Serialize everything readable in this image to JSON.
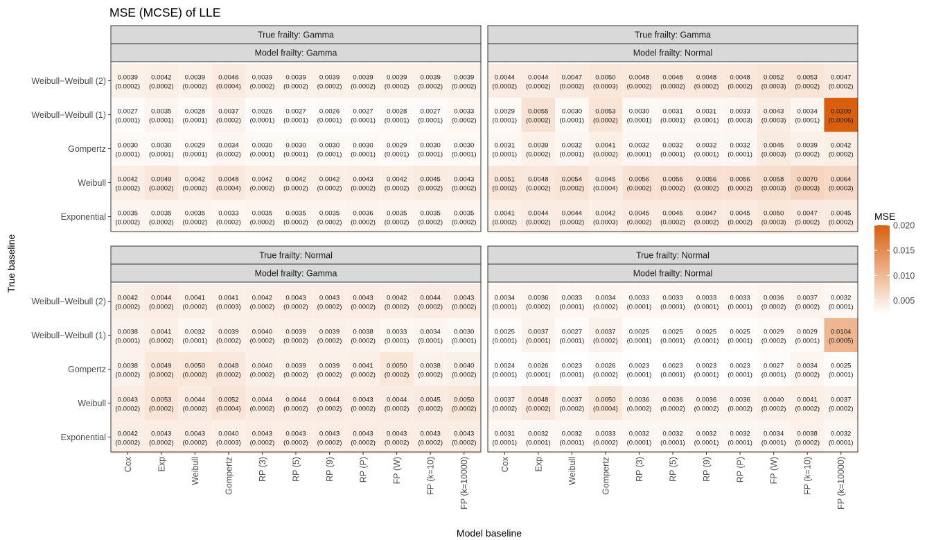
{
  "chart_data": {
    "type": "heatmap",
    "title": "MSE (MCSE) of LLE",
    "xlabel": "Model baseline",
    "ylabel": "True baseline",
    "x_categories": [
      "Cox",
      "Exp",
      "Weibull",
      "Gompertz",
      "RP (3)",
      "RP (5)",
      "RP (9)",
      "RP (P)",
      "FP (W)",
      "FP (k=10)",
      "FP (k=10000)"
    ],
    "y_categories": [
      "Weibull−Weibull (2)",
      "Weibull−Weibull (1)",
      "Gompertz",
      "Weibull",
      "Exponential"
    ],
    "legend": {
      "title": "MSE",
      "ticks": [
        "0.005",
        "0.010",
        "0.015",
        "0.020"
      ],
      "range": [
        0.0023,
        0.02
      ],
      "low_color": "#ffffff",
      "high_color": "#d95f0e"
    },
    "panels": [
      {
        "strip_top": "True frailty: Gamma",
        "strip_bottom": "Model frailty: Gamma",
        "mse": [
          [
            "0.0039",
            "0.0042",
            "0.0039",
            "0.0046",
            "0.0039",
            "0.0039",
            "0.0039",
            "0.0039",
            "0.0039",
            "0.0039",
            "0.0039"
          ],
          [
            "0.0027",
            "0.0035",
            "0.0028",
            "0.0037",
            "0.0026",
            "0.0027",
            "0.0026",
            "0.0027",
            "0.0028",
            "0.0027",
            "0.0033"
          ],
          [
            "0.0030",
            "0.0030",
            "0.0029",
            "0.0034",
            "0.0030",
            "0.0030",
            "0.0030",
            "0.0030",
            "0.0029",
            "0.0030",
            "0.0030"
          ],
          [
            "0.0042",
            "0.0049",
            "0.0042",
            "0.0048",
            "0.0042",
            "0.0042",
            "0.0042",
            "0.0043",
            "0.0042",
            "0.0045",
            "0.0043"
          ],
          [
            "0.0035",
            "0.0035",
            "0.0035",
            "0.0033",
            "0.0035",
            "0.0035",
            "0.0035",
            "0.0036",
            "0.0035",
            "0.0035",
            "0.0035"
          ]
        ],
        "mcse": [
          [
            "(0.0002)",
            "(0.0002)",
            "(0.0002)",
            "(0.0004)",
            "(0.0002)",
            "(0.0002)",
            "(0.0002)",
            "(0.0002)",
            "(0.0002)",
            "(0.0002)",
            "(0.0002)"
          ],
          [
            "(0.0001)",
            "(0.0001)",
            "(0.0001)",
            "(0.0002)",
            "(0.0001)",
            "(0.0001)",
            "(0.0001)",
            "(0.0001)",
            "(0.0001)",
            "(0.0001)",
            "(0.0002)"
          ],
          [
            "(0.0001)",
            "(0.0001)",
            "(0.0001)",
            "(0.0002)",
            "(0.0001)",
            "(0.0001)",
            "(0.0001)",
            "(0.0001)",
            "(0.0001)",
            "(0.0001)",
            "(0.0001)"
          ],
          [
            "(0.0002)",
            "(0.0002)",
            "(0.0002)",
            "(0.0004)",
            "(0.0002)",
            "(0.0002)",
            "(0.0002)",
            "(0.0002)",
            "(0.0002)",
            "(0.0002)",
            "(0.0002)"
          ],
          [
            "(0.0002)",
            "(0.0002)",
            "(0.0002)",
            "(0.0002)",
            "(0.0002)",
            "(0.0002)",
            "(0.0002)",
            "(0.0002)",
            "(0.0002)",
            "(0.0002)",
            "(0.0002)"
          ]
        ]
      },
      {
        "strip_top": "True frailty: Gamma",
        "strip_bottom": "Model frailty: Normal",
        "mse": [
          [
            "0.0044",
            "0.0044",
            "0.0047",
            "0.0050",
            "0.0048",
            "0.0048",
            "0.0048",
            "0.0048",
            "0.0052",
            "0.0053",
            "0.0047"
          ],
          [
            "0.0029",
            "0.0055",
            "0.0030",
            "0.0053",
            "0.0030",
            "0.0031",
            "0.0031",
            "0.0033",
            "0.0043",
            "0.0034",
            "0.0200"
          ],
          [
            "0.0031",
            "0.0039",
            "0.0032",
            "0.0041",
            "0.0032",
            "0.0032",
            "0.0032",
            "0.0032",
            "0.0045",
            "0.0039",
            "0.0042"
          ],
          [
            "0.0051",
            "0.0048",
            "0.0054",
            "0.0045",
            "0.0056",
            "0.0056",
            "0.0056",
            "0.0056",
            "0.0058",
            "0.0070",
            "0.0064"
          ],
          [
            "0.0041",
            "0.0044",
            "0.0044",
            "0.0042",
            "0.0045",
            "0.0045",
            "0.0047",
            "0.0045",
            "0.0050",
            "0.0047",
            "0.0045"
          ]
        ],
        "mcse": [
          [
            "(0.0002)",
            "(0.0002)",
            "(0.0002)",
            "(0.0003)",
            "(0.0002)",
            "(0.0002)",
            "(0.0002)",
            "(0.0002)",
            "(0.0003)",
            "(0.0002)",
            "(0.0002)"
          ],
          [
            "(0.0001)",
            "(0.0002)",
            "(0.0001)",
            "(0.0002)",
            "(0.0001)",
            "(0.0001)",
            "(0.0001)",
            "(0.0003)",
            "(0.0003)",
            "(0.0001)",
            "(0.0006)"
          ],
          [
            "(0.0001)",
            "(0.0002)",
            "(0.0001)",
            "(0.0002)",
            "(0.0001)",
            "(0.0001)",
            "(0.0001)",
            "(0.0001)",
            "(0.0003)",
            "(0.0002)",
            "(0.0002)"
          ],
          [
            "(0.0002)",
            "(0.0002)",
            "(0.0002)",
            "(0.0004)",
            "(0.0002)",
            "(0.0002)",
            "(0.0002)",
            "(0.0002)",
            "(0.0003)",
            "(0.0003)",
            "(0.0003)"
          ],
          [
            "(0.0002)",
            "(0.0002)",
            "(0.0002)",
            "(0.0003)",
            "(0.0002)",
            "(0.0002)",
            "(0.0002)",
            "(0.0002)",
            "(0.0003)",
            "(0.0002)",
            "(0.0002)"
          ]
        ]
      },
      {
        "strip_top": "True frailty: Normal",
        "strip_bottom": "Model frailty: Gamma",
        "mse": [
          [
            "0.0042",
            "0.0044",
            "0.0041",
            "0.0041",
            "0.0042",
            "0.0043",
            "0.0043",
            "0.0043",
            "0.0042",
            "0.0044",
            "0.0043"
          ],
          [
            "0.0038",
            "0.0041",
            "0.0032",
            "0.0039",
            "0.0040",
            "0.0039",
            "0.0039",
            "0.0038",
            "0.0033",
            "0.0034",
            "0.0030"
          ],
          [
            "0.0038",
            "0.0049",
            "0.0050",
            "0.0048",
            "0.0040",
            "0.0039",
            "0.0039",
            "0.0041",
            "0.0050",
            "0.0038",
            "0.0040"
          ],
          [
            "0.0043",
            "0.0053",
            "0.0044",
            "0.0052",
            "0.0044",
            "0.0044",
            "0.0044",
            "0.0043",
            "0.0044",
            "0.0045",
            "0.0050"
          ],
          [
            "0.0042",
            "0.0043",
            "0.0043",
            "0.0040",
            "0.0043",
            "0.0043",
            "0.0043",
            "0.0043",
            "0.0043",
            "0.0043",
            "0.0043"
          ]
        ],
        "mcse": [
          [
            "(0.0002)",
            "(0.0002)",
            "(0.0002)",
            "(0.0003)",
            "(0.0002)",
            "(0.0002)",
            "(0.0002)",
            "(0.0002)",
            "(0.0002)",
            "(0.0002)",
            "(0.0002)"
          ],
          [
            "(0.0001)",
            "(0.0002)",
            "(0.0001)",
            "(0.0002)",
            "(0.0002)",
            "(0.0002)",
            "(0.0002)",
            "(0.0002)",
            "(0.0001)",
            "(0.0001)",
            "(0.0001)"
          ],
          [
            "(0.0002)",
            "(0.0002)",
            "(0.0002)",
            "(0.0002)",
            "(0.0002)",
            "(0.0002)",
            "(0.0002)",
            "(0.0002)",
            "(0.0002)",
            "(0.0002)",
            "(0.0002)"
          ],
          [
            "(0.0002)",
            "(0.0002)",
            "(0.0002)",
            "(0.0004)",
            "(0.0002)",
            "(0.0002)",
            "(0.0002)",
            "(0.0002)",
            "(0.0002)",
            "(0.0002)",
            "(0.0002)"
          ],
          [
            "(0.0002)",
            "(0.0002)",
            "(0.0002)",
            "(0.0003)",
            "(0.0002)",
            "(0.0002)",
            "(0.0002)",
            "(0.0002)",
            "(0.0002)",
            "(0.0002)",
            "(0.0002)"
          ]
        ]
      },
      {
        "strip_top": "True frailty: Normal",
        "strip_bottom": "Model frailty: Normal",
        "mse": [
          [
            "0.0034",
            "0.0036",
            "0.0033",
            "0.0034",
            "0.0033",
            "0.0033",
            "0.0033",
            "0.0033",
            "0.0036",
            "0.0037",
            "0.0032"
          ],
          [
            "0.0025",
            "0.0037",
            "0.0027",
            "0.0037",
            "0.0025",
            "0.0025",
            "0.0025",
            "0.0025",
            "0.0029",
            "0.0029",
            "0.0104"
          ],
          [
            "0.0024",
            "0.0026",
            "0.0023",
            "0.0026",
            "0.0023",
            "0.0023",
            "0.0023",
            "0.0023",
            "0.0027",
            "0.0034",
            "0.0025"
          ],
          [
            "0.0037",
            "0.0048",
            "0.0037",
            "0.0050",
            "0.0036",
            "0.0036",
            "0.0036",
            "0.0036",
            "0.0040",
            "0.0041",
            "0.0037"
          ],
          [
            "0.0031",
            "0.0032",
            "0.0032",
            "0.0033",
            "0.0032",
            "0.0032",
            "0.0032",
            "0.0032",
            "0.0034",
            "0.0038",
            "0.0032"
          ]
        ],
        "mcse": [
          [
            "(0.0001)",
            "(0.0002)",
            "(0.0001)",
            "(0.0002)",
            "(0.0001)",
            "(0.0001)",
            "(0.0001)",
            "(0.0001)",
            "(0.0002)",
            "(0.0002)",
            "(0.0001)"
          ],
          [
            "(0.0001)",
            "(0.0001)",
            "(0.0001)",
            "(0.0002)",
            "(0.0001)",
            "(0.0001)",
            "(0.0001)",
            "(0.0001)",
            "(0.0002)",
            "(0.0001)",
            "(0.0005)"
          ],
          [
            "(0.0001)",
            "(0.0001)",
            "(0.0001)",
            "(0.0002)",
            "(0.0001)",
            "(0.0001)",
            "(0.0001)",
            "(0.0001)",
            "(0.0001)",
            "(0.0002)",
            "(0.0001)"
          ],
          [
            "(0.0002)",
            "(0.0002)",
            "(0.0002)",
            "(0.0004)",
            "(0.0002)",
            "(0.0002)",
            "(0.0002)",
            "(0.0002)",
            "(0.0002)",
            "(0.0002)",
            "(0.0002)"
          ],
          [
            "(0.0001)",
            "(0.0001)",
            "(0.0001)",
            "(0.0002)",
            "(0.0001)",
            "(0.0001)",
            "(0.0001)",
            "(0.0001)",
            "(0.0001)",
            "(0.0002)",
            "(0.0001)"
          ]
        ]
      }
    ]
  }
}
